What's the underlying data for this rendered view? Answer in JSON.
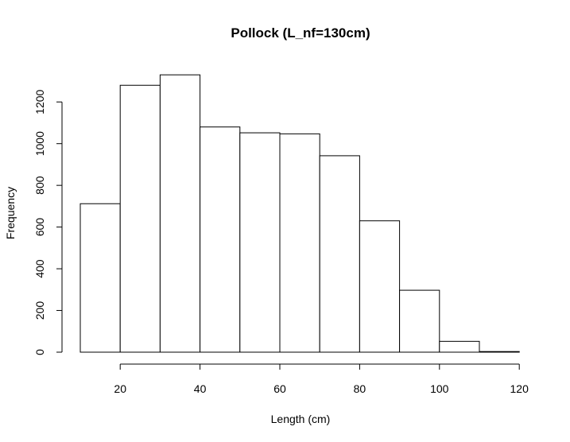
{
  "chart_data": {
    "type": "bar",
    "title": "Pollock (L_nf=130cm)",
    "xlabel": "Length (cm)",
    "ylabel": "Frequency",
    "bins": [
      {
        "x0": 10,
        "x1": 20,
        "value": 712
      },
      {
        "x0": 20,
        "x1": 30,
        "value": 1280
      },
      {
        "x0": 30,
        "x1": 40,
        "value": 1330
      },
      {
        "x0": 40,
        "x1": 50,
        "value": 1080
      },
      {
        "x0": 50,
        "x1": 60,
        "value": 1052
      },
      {
        "x0": 60,
        "x1": 70,
        "value": 1047
      },
      {
        "x0": 70,
        "x1": 80,
        "value": 942
      },
      {
        "x0": 80,
        "x1": 90,
        "value": 630
      },
      {
        "x0": 90,
        "x1": 100,
        "value": 297
      },
      {
        "x0": 100,
        "x1": 110,
        "value": 52
      },
      {
        "x0": 110,
        "x1": 120,
        "value": 3
      }
    ],
    "xticks": [
      20,
      40,
      60,
      80,
      100,
      120
    ],
    "yticks": [
      0,
      200,
      400,
      600,
      800,
      1000,
      1200
    ],
    "xlim": [
      10,
      120
    ],
    "ylim": [
      0,
      1330
    ],
    "grid": false,
    "legend": false
  }
}
